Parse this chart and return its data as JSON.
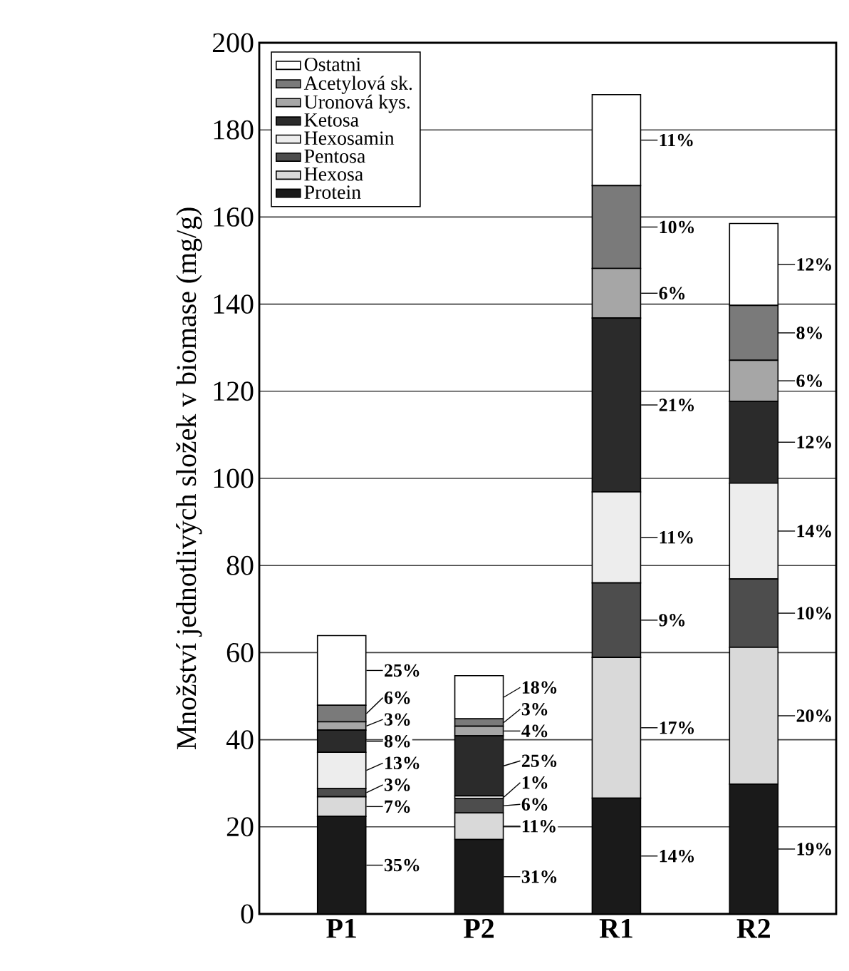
{
  "chart_data": {
    "type": "bar",
    "stacked": true,
    "ylabel": "Množství jednotlivých složek v biomase (mg/g)",
    "categories": [
      "P1",
      "P2",
      "R1",
      "R2"
    ],
    "ylim": [
      0,
      200
    ],
    "yticks": [
      0,
      20,
      40,
      60,
      80,
      100,
      120,
      140,
      160,
      180,
      200
    ],
    "grid": "y",
    "legend": "top left",
    "series": [
      {
        "name": "Protein",
        "color": "#1a1a1a",
        "values": [
          22.4,
          17.1,
          26.6,
          29.8
        ]
      },
      {
        "name": "Hexosa",
        "color": "#d9d9d9",
        "values": [
          4.5,
          6.1,
          32.3,
          31.4
        ]
      },
      {
        "name": "Pentosa",
        "color": "#4d4d4d",
        "values": [
          1.9,
          3.3,
          17.1,
          15.7
        ]
      },
      {
        "name": "Hexosamin",
        "color": "#ededed",
        "values": [
          8.3,
          0.6,
          20.9,
          22.0
        ]
      },
      {
        "name": "Ketosa",
        "color": "#2b2b2b",
        "values": [
          5.1,
          13.8,
          39.9,
          18.8
        ]
      },
      {
        "name": "Uronová kys.",
        "color": "#a6a6a6",
        "values": [
          1.9,
          2.2,
          11.4,
          9.4
        ]
      },
      {
        "name": "Acetylová sk.",
        "color": "#7a7a7a",
        "values": [
          3.8,
          1.7,
          19.0,
          12.6
        ]
      },
      {
        "name": "Ostatni",
        "color": "#ffffff",
        "values": [
          16.0,
          9.9,
          20.9,
          18.8
        ]
      }
    ],
    "annotations": [
      "35%",
      "7%",
      "3%",
      "13%",
      "8%",
      "3%",
      "6%",
      "25%",
      "31%",
      "11%",
      "6%",
      "1%",
      "25%",
      "4%",
      "3%",
      "18%",
      "14%",
      "17%",
      "9%",
      "11%",
      "21%",
      "6%",
      "10%",
      "11%",
      "19%",
      "20%",
      "10%",
      "14%",
      "12%",
      "6%",
      "8%",
      "12%"
    ]
  }
}
